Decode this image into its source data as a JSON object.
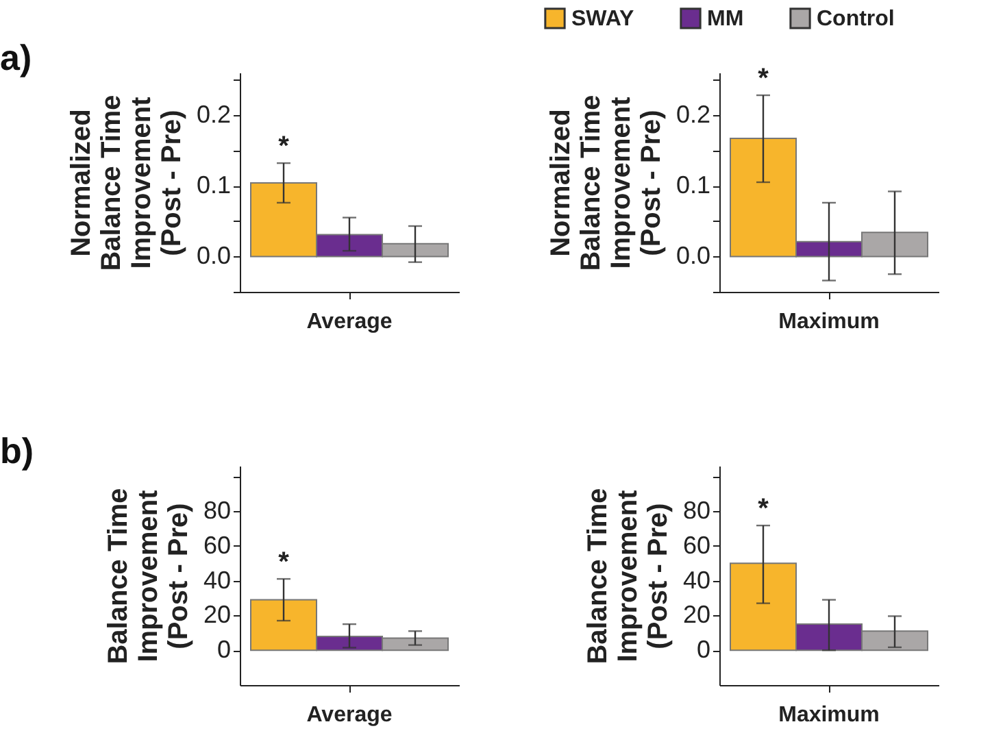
{
  "chart_data": [
    {
      "type": "bar",
      "categories": [
        "Average"
      ],
      "ylabel": "Normalized\nBalance Time\nImprovement\n(Post - Pre)",
      "ylim": [
        -0.05,
        0.26
      ],
      "yticks": [
        {
          "value": -0.05,
          "label": null
        },
        {
          "value": 0,
          "label": "0.0"
        },
        {
          "value": 0.05,
          "label": null
        },
        0.1,
        {
          "value": 0.15,
          "label": null
        },
        0.2,
        {
          "value": 0.25,
          "label": null
        }
      ],
      "grid": false,
      "legend": "top right",
      "annotations": [
        "a)",
        "*"
      ],
      "series": [
        {
          "name": "SWAY",
          "color": "#f7b52c",
          "values": [
            0.104
          ],
          "errors": [
            [
              0.076,
              0.132
            ]
          ]
        },
        {
          "name": "MM",
          "color": "#6a2d8f",
          "values": [
            0.031
          ],
          "errors": [
            [
              0.008,
              0.055
            ]
          ]
        },
        {
          "name": "Control",
          "color": "#aaa7a7",
          "values": [
            0.018
          ],
          "errors": [
            [
              -0.008,
              0.043
            ]
          ]
        }
      ]
    },
    {
      "type": "bar",
      "categories": [
        "Maximum"
      ],
      "ylabel": "Normalized\nBalance Time\nImprovement\n(Post - Pre)",
      "ylim": [
        -0.05,
        0.26
      ],
      "yticks": [
        {
          "value": -0.05,
          "label": null
        },
        {
          "value": 0,
          "label": "0.0"
        },
        {
          "value": 0.05,
          "label": null
        },
        0.1,
        {
          "value": 0.15,
          "label": null
        },
        0.2,
        {
          "value": 0.25,
          "label": null
        }
      ],
      "grid": false,
      "legend": false,
      "annotations": [
        "*"
      ],
      "series": [
        {
          "name": "SWAY",
          "color": "#f7b52c",
          "values": [
            0.167
          ],
          "errors": [
            [
              0.105,
              0.228
            ]
          ]
        },
        {
          "name": "MM",
          "color": "#6a2d8f",
          "values": [
            0.021
          ],
          "errors": [
            [
              -0.034,
              0.076
            ]
          ]
        },
        {
          "name": "Control",
          "color": "#aaa7a7",
          "values": [
            0.034
          ],
          "errors": [
            [
              -0.025,
              0.092
            ]
          ]
        }
      ]
    },
    {
      "type": "bar",
      "categories": [
        "Average"
      ],
      "ylabel": "Balance Time\nImprovement\n(Post - Pre)",
      "ylim": [
        -20,
        106
      ],
      "yticks": [
        0,
        20,
        40,
        60,
        80,
        {
          "value": 100,
          "label": null
        }
      ],
      "grid": false,
      "legend": false,
      "annotations": [
        "b)",
        "*"
      ],
      "series": [
        {
          "name": "SWAY",
          "color": "#f7b52c",
          "values": [
            29
          ],
          "errors": [
            [
              17,
              41
            ]
          ]
        },
        {
          "name": "MM",
          "color": "#6a2d8f",
          "values": [
            8
          ],
          "errors": [
            [
              1.5,
              15
            ]
          ]
        },
        {
          "name": "Control",
          "color": "#aaa7a7",
          "values": [
            7
          ],
          "errors": [
            [
              3,
              11
            ]
          ]
        }
      ]
    },
    {
      "type": "bar",
      "categories": [
        "Maximum"
      ],
      "ylabel": "Balance Time\nImprovement\n(Post - Pre)",
      "ylim": [
        -20,
        106
      ],
      "yticks": [
        0,
        20,
        40,
        60,
        80,
        {
          "value": 100,
          "label": null
        }
      ],
      "grid": false,
      "legend": false,
      "annotations": [
        "*"
      ],
      "series": [
        {
          "name": "SWAY",
          "color": "#f7b52c",
          "values": [
            50
          ],
          "errors": [
            [
              27,
              71.7
            ]
          ]
        },
        {
          "name": "MM",
          "color": "#6a2d8f",
          "values": [
            15
          ],
          "errors": [
            [
              0,
              29
            ]
          ]
        },
        {
          "name": "Control",
          "color": "#aaa7a7",
          "values": [
            11
          ],
          "errors": [
            [
              1.7,
              19.6
            ]
          ]
        }
      ]
    }
  ]
}
